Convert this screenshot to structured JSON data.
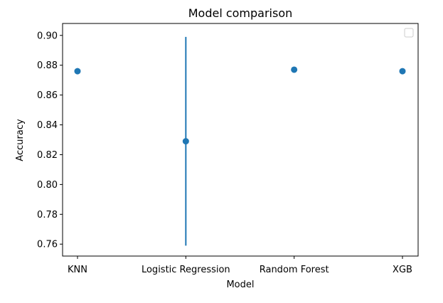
{
  "chart_data": {
    "type": "scatter",
    "title": "Model comparison",
    "xlabel": "Model",
    "ylabel": "Accuracy",
    "categories": [
      "KNN",
      "Logistic Regression",
      "Random Forest",
      "XGB"
    ],
    "series": [
      {
        "values": [
          0.876,
          0.829,
          0.877,
          0.876
        ],
        "error": [
          0.002,
          0.07,
          0.001,
          0.001
        ],
        "color": "#1f77b4"
      }
    ],
    "ylim": [
      0.752,
      0.908
    ],
    "yticks": [
      0.76,
      0.78,
      0.8,
      0.82,
      0.84,
      0.86,
      0.88,
      0.9
    ],
    "ytick_labels": [
      "0.76",
      "0.78",
      "0.80",
      "0.82",
      "0.84",
      "0.86",
      "0.88",
      "0.90"
    ],
    "grid": false,
    "legend": {
      "placement": "top-right",
      "entries": []
    }
  }
}
